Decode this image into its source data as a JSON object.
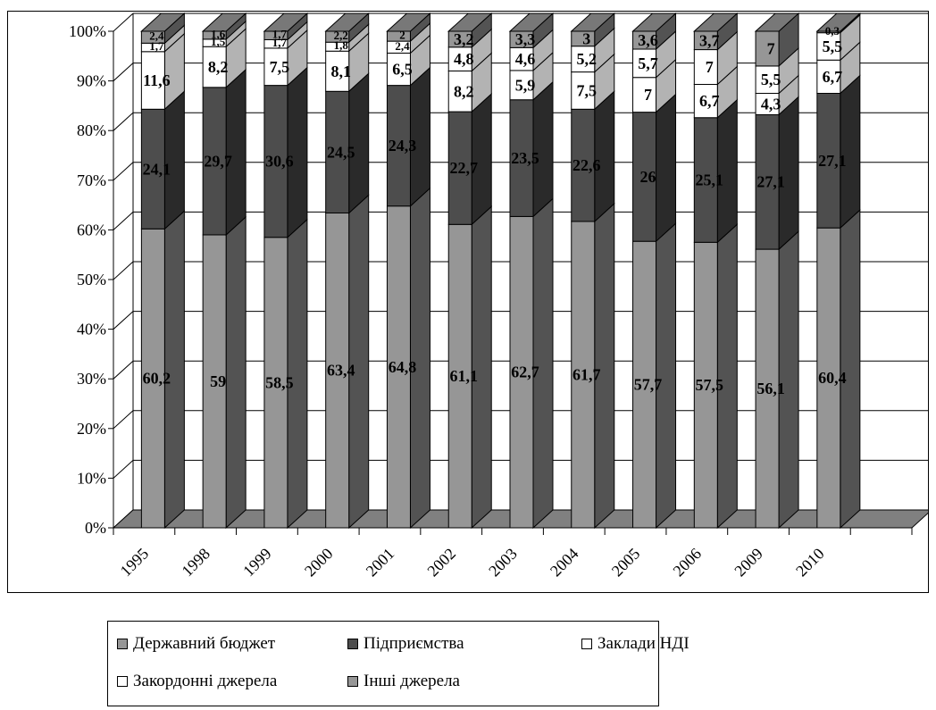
{
  "chart_data": {
    "type": "bar",
    "stacked": "percent",
    "three_d": true,
    "categories": [
      "1995",
      "1998",
      "1999",
      "2000",
      "2001",
      "2002",
      "2003",
      "2004",
      "2005",
      "2006",
      "2009",
      "2010"
    ],
    "series": [
      {
        "name": "Державний бюджет",
        "color": "#969696",
        "values": [
          60.2,
          59,
          58.5,
          63.4,
          64.8,
          61.1,
          62.7,
          61.7,
          57.7,
          57.5,
          56.1,
          60.4
        ],
        "labels": [
          "60,2",
          "59",
          "58,5",
          "63,4",
          "64,8",
          "61,1",
          "62,7",
          "61,7",
          "57,7",
          "57,5",
          "56,1",
          "60,4"
        ]
      },
      {
        "name": "Підприємства",
        "color": "#4d4d4d",
        "values": [
          24.1,
          29.7,
          30.6,
          24.5,
          24.3,
          22.7,
          23.5,
          22.6,
          26,
          25.1,
          27.1,
          27.1
        ],
        "labels": [
          "24,1",
          "29,7",
          "30,6",
          "24,5",
          "24,3",
          "22,7",
          "23,5",
          "22,6",
          "26",
          "25,1",
          "27,1",
          "27,1"
        ]
      },
      {
        "name": "Заклади НДІ",
        "color": "#ffffff",
        "values": [
          11.6,
          8.2,
          7.5,
          8.1,
          6.5,
          8.2,
          5.9,
          7.5,
          7,
          6.7,
          4.3,
          6.7
        ],
        "labels": [
          "11,6",
          "8,2",
          "7,5",
          "8,1",
          "6,5",
          "8,2",
          "5,9",
          "7,5",
          "7",
          "6,7",
          "4,3",
          "6,7"
        ]
      },
      {
        "name": "Закордонні джерела",
        "color": "#ffffff",
        "values": [
          1.7,
          1.5,
          1.7,
          1.8,
          2.4,
          4.8,
          4.6,
          5.2,
          5.7,
          7,
          5.5,
          5.5
        ],
        "labels": [
          "1,7",
          "1,5",
          "1,7",
          "1,8",
          "2,4",
          "4,8",
          "4,6",
          "5,2",
          "5,7",
          "7",
          "5,5",
          "5,5"
        ]
      },
      {
        "name": "Інші джерела",
        "color": "#969696",
        "values": [
          2.4,
          1.6,
          1.7,
          2.2,
          2,
          3.2,
          3.3,
          3,
          3.6,
          3.7,
          7,
          0.3
        ],
        "labels": [
          "2,4",
          "1,6",
          "1,7",
          "2,2",
          "2",
          "3,2",
          "3,3",
          "3",
          "3,6",
          "3,7",
          "7",
          "0,3"
        ]
      }
    ],
    "y_ticks": [
      "0%",
      "10%",
      "20%",
      "30%",
      "40%",
      "50%",
      "60%",
      "70%",
      "80%",
      "90%",
      "100%"
    ],
    "ylim": [
      0,
      100
    ],
    "grid": true,
    "legend_position": "bottom"
  }
}
